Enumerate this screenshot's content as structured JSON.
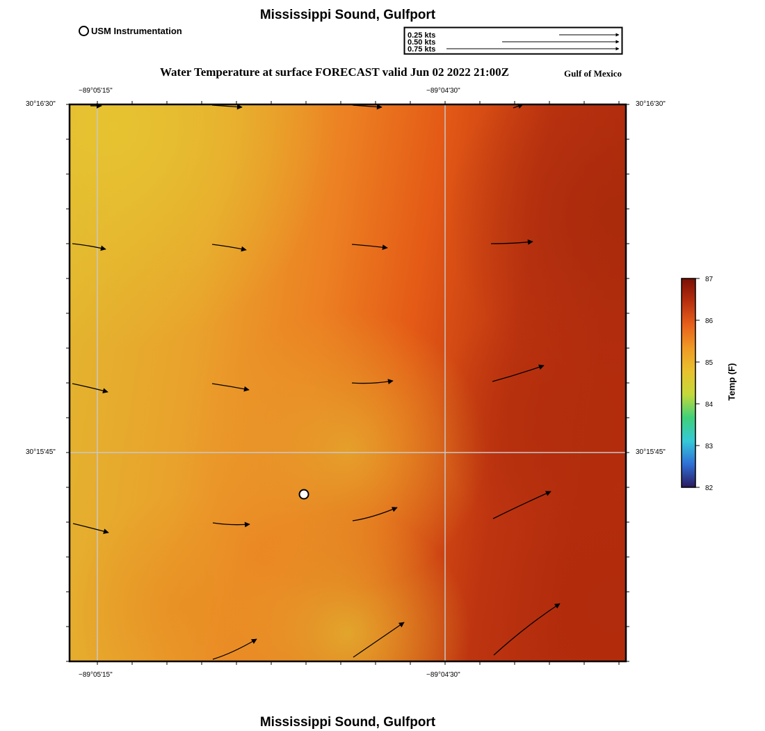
{
  "header": {
    "title": "Mississippi Sound, Gulfport",
    "footer_title": "Mississippi Sound, Gulfport",
    "plot_title": "Water Temperature at surface FORECAST valid Jun 02 2022 21:00Z",
    "region": "Gulf of Mexico"
  },
  "legend": {
    "station_label": "USM Instrumentation",
    "vector_scale": [
      "0.25 kts",
      "0.50 kts",
      "0.75 kts"
    ]
  },
  "axes": {
    "lon_ticks": [
      "−89°05'15\"",
      "−89°04'30\""
    ],
    "lat_ticks": [
      "30°16'30\"",
      "30°15'45\""
    ]
  },
  "colorbar": {
    "label": "Temp (F)",
    "ticks": [
      "87",
      "86",
      "85",
      "84",
      "83",
      "82"
    ],
    "min": 82,
    "max": 87,
    "colors": [
      "#2a1a5e",
      "#2f6fd6",
      "#35c9d8",
      "#3fd07a",
      "#c4d93a",
      "#e8c12e",
      "#ef9a25",
      "#e8601b",
      "#b8300e",
      "#7a0f05"
    ]
  },
  "map": {
    "station_icon": "usm-station-circle-icon",
    "vector_icon": "current-arrow-icon"
  }
}
